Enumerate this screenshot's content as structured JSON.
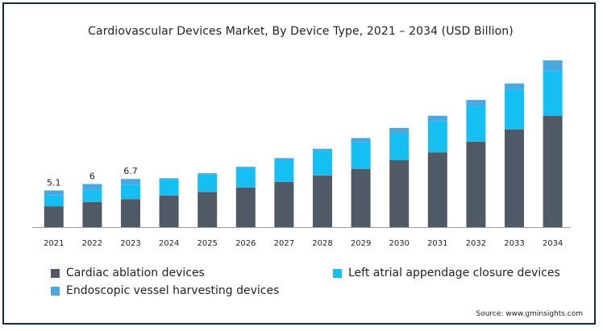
{
  "chart_data": {
    "type": "bar",
    "stacked": true,
    "title": "Cardiovascular Devices Market, By Device Type, 2021 – 2034 (USD Billion)",
    "categories": [
      "2021",
      "2022",
      "2023",
      "2024",
      "2025",
      "2026",
      "2027",
      "2028",
      "2029",
      "2030",
      "2031",
      "2032",
      "2033",
      "2034"
    ],
    "series": [
      {
        "name": "Cardiac ablation devices",
        "color": "#4f5a66",
        "values": [
          2.9,
          3.5,
          3.9,
          4.4,
          4.9,
          5.5,
          6.3,
          7.2,
          8.1,
          9.3,
          10.4,
          11.9,
          13.6,
          15.5
        ]
      },
      {
        "name": "Left atrial appendage closure devices",
        "color": "#16bff2",
        "values": [
          1.5,
          1.7,
          2.0,
          2.2,
          2.4,
          2.7,
          3.0,
          3.4,
          3.7,
          3.7,
          4.3,
          4.9,
          5.5,
          6.2
        ]
      },
      {
        "name": "Endoscopic vessel harvesting devices",
        "color": "#4aa8e0",
        "values": [
          0.7,
          0.8,
          0.8,
          0.2,
          0.2,
          0.2,
          0.3,
          0.3,
          0.6,
          0.8,
          0.8,
          0.9,
          0.9,
          1.5
        ]
      }
    ],
    "data_labels": {
      "2021": "5.1",
      "2022": "6",
      "2023": "6.7"
    },
    "ylim": [
      0,
      23.2
    ],
    "grid": false,
    "legend_position": "bottom"
  },
  "legend": {
    "item1": "Cardiac ablation devices",
    "item2": "Left atrial appendage closure devices",
    "item3": "Endoscopic vessel harvesting devices"
  },
  "source": "Source: www.gminsights.com"
}
